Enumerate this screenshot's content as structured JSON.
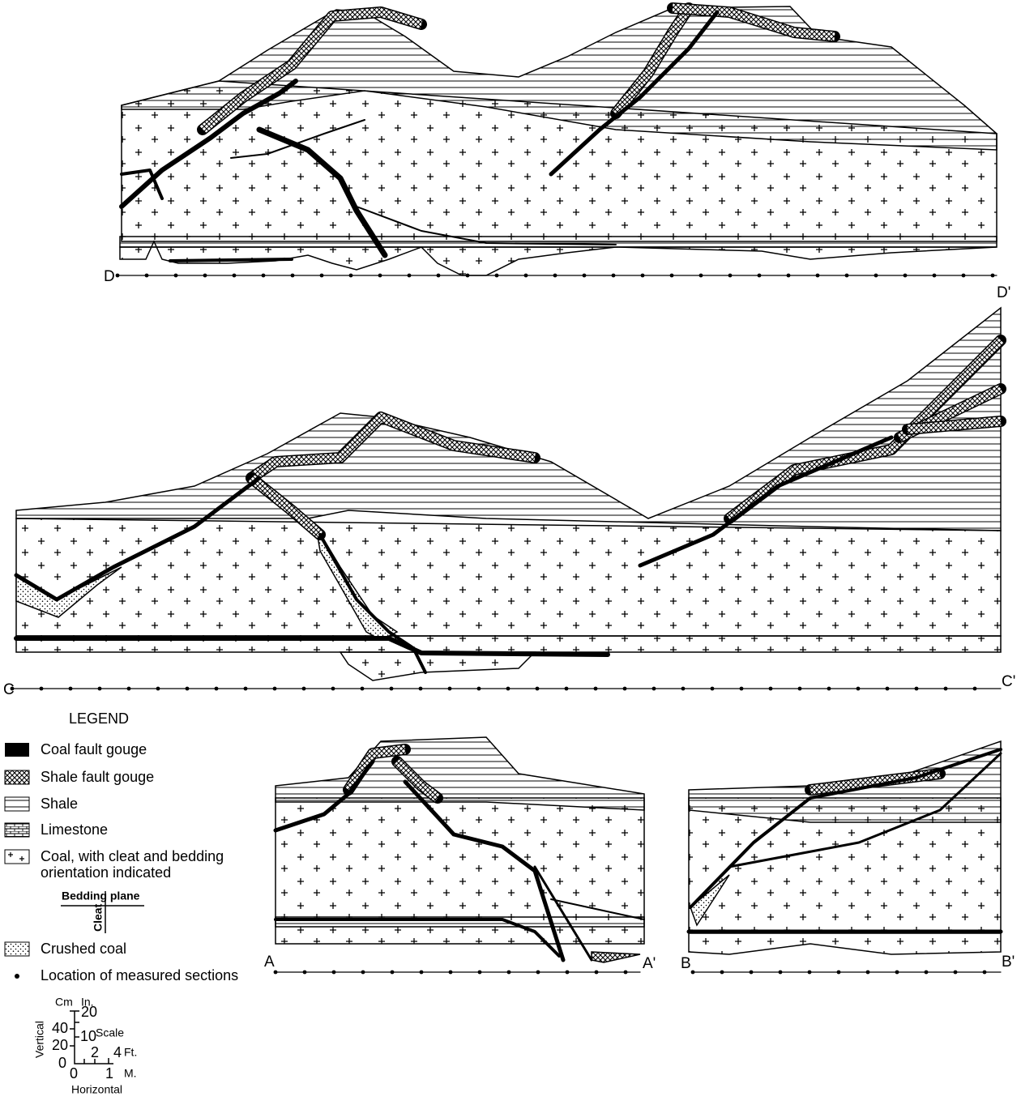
{
  "sections": [
    {
      "start": "D",
      "end": "D'"
    },
    {
      "start": "C",
      "end": "C'"
    },
    {
      "start": "A",
      "end": "A'"
    },
    {
      "start": "B",
      "end": "B'"
    }
  ],
  "legend": {
    "title": "LEGEND",
    "coal_fault_gouge": "Coal fault gouge",
    "shale_fault_gouge": "Shale fault gouge",
    "shale": "Shale",
    "limestone": "Limestone",
    "coal": [
      "Coal, with cleat and bedding",
      "orientation indicated"
    ],
    "bedding_plane": "Bedding plane",
    "cleat": "Cleat",
    "crushed_coal": "Crushed coal",
    "measured_sections": "Location of measured sections"
  },
  "scale": {
    "cm_unit": "Cm",
    "in_unit": "In.",
    "cm_ticks": [
      40,
      20,
      0
    ],
    "in_ticks": [
      20,
      10
    ],
    "title": "Scale",
    "ft_ticks": [
      2,
      4
    ],
    "ft_unit": "Ft.",
    "m_ticks": [
      0,
      1
    ],
    "m_unit": "M.",
    "vertical_label": "Vertical",
    "horizontal_label": "Horizontal"
  }
}
